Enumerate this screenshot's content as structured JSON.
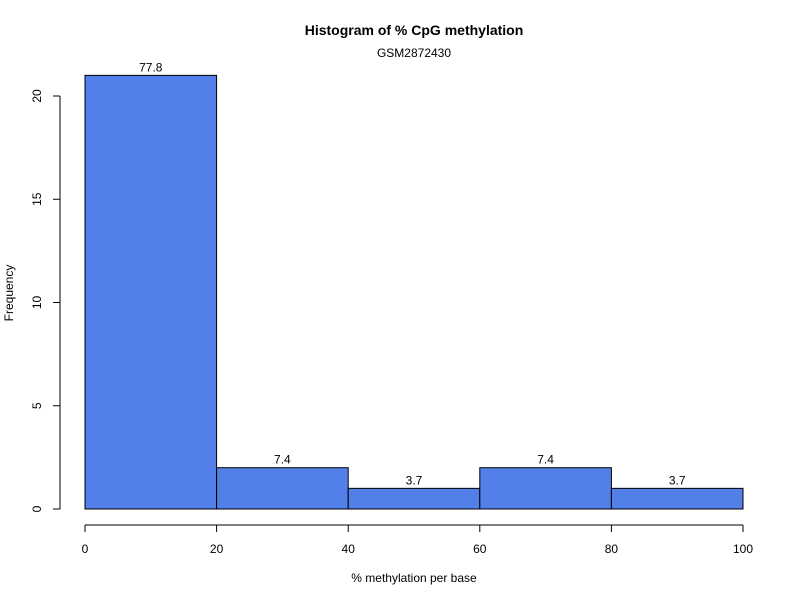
{
  "chart_data": {
    "type": "bar",
    "title": "Histogram of % CpG methylation",
    "subtitle": "GSM2872430",
    "xlabel": "% methylation per base",
    "ylabel": "Frequency",
    "bins": [
      [
        0,
        20
      ],
      [
        20,
        40
      ],
      [
        40,
        60
      ],
      [
        60,
        80
      ],
      [
        80,
        100
      ]
    ],
    "values": [
      21,
      2,
      1,
      2,
      1
    ],
    "data_labels": [
      "77.8",
      "7.4",
      "3.7",
      "7.4",
      "3.7"
    ],
    "xlim": [
      0,
      100
    ],
    "ylim": [
      0,
      21
    ],
    "x_ticks": [
      0,
      20,
      40,
      60,
      80,
      100
    ],
    "y_ticks": [
      0,
      5,
      10,
      15,
      20
    ],
    "bar_color": "#527fe8",
    "grid": false,
    "legend": "none"
  }
}
